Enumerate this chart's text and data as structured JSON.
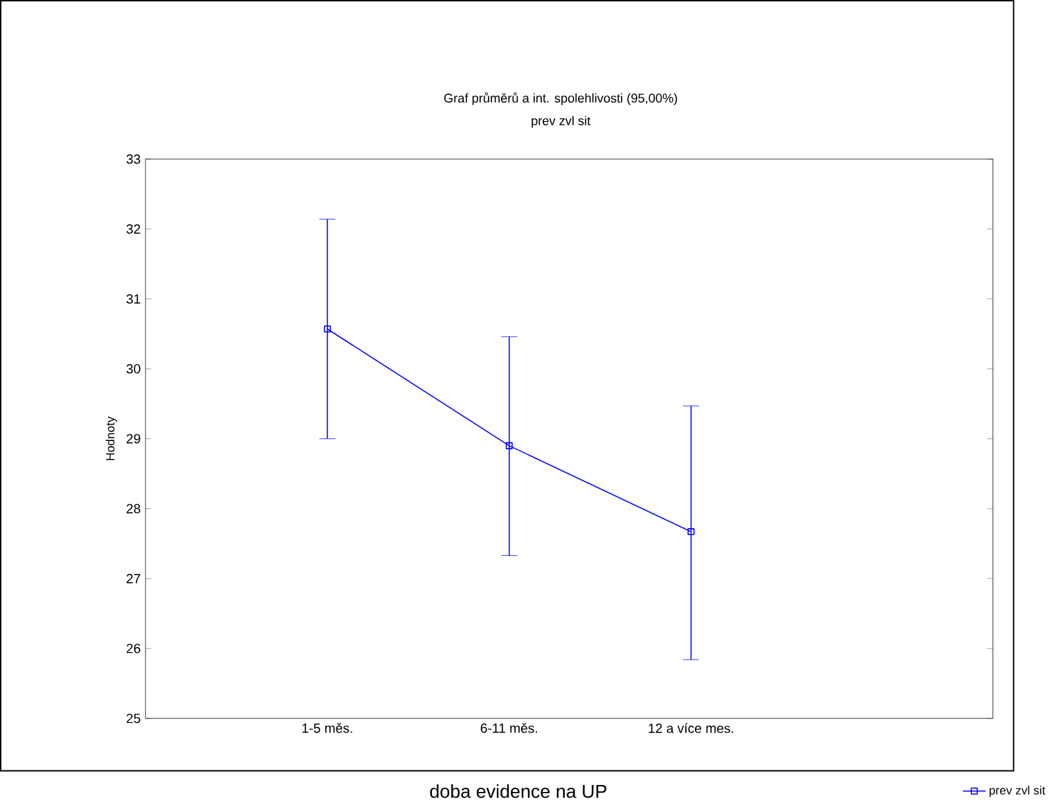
{
  "chart_data": {
    "type": "line",
    "title": "Graf průměrů a int. spolehlivosti (95,00%)",
    "subtitle": "prev zvl sit",
    "xlabel": "doba evidence na UP",
    "ylabel": "Hodnoty",
    "categories": [
      "1-5 měs.",
      "6-11 měs.",
      "12 a více mes."
    ],
    "series": [
      {
        "name": "prev zvl sit",
        "color": "#0000ff",
        "values": [
          30.57,
          28.9,
          27.67
        ],
        "errors": [
          [
            29.0,
            32.14
          ],
          [
            27.33,
            30.46
          ],
          [
            25.84,
            29.47
          ]
        ]
      }
    ],
    "ylim": [
      25,
      33
    ],
    "yticks": [
      25,
      26,
      27,
      28,
      29,
      30,
      31,
      32,
      33
    ],
    "legend": "bottom right",
    "marker": "square"
  }
}
